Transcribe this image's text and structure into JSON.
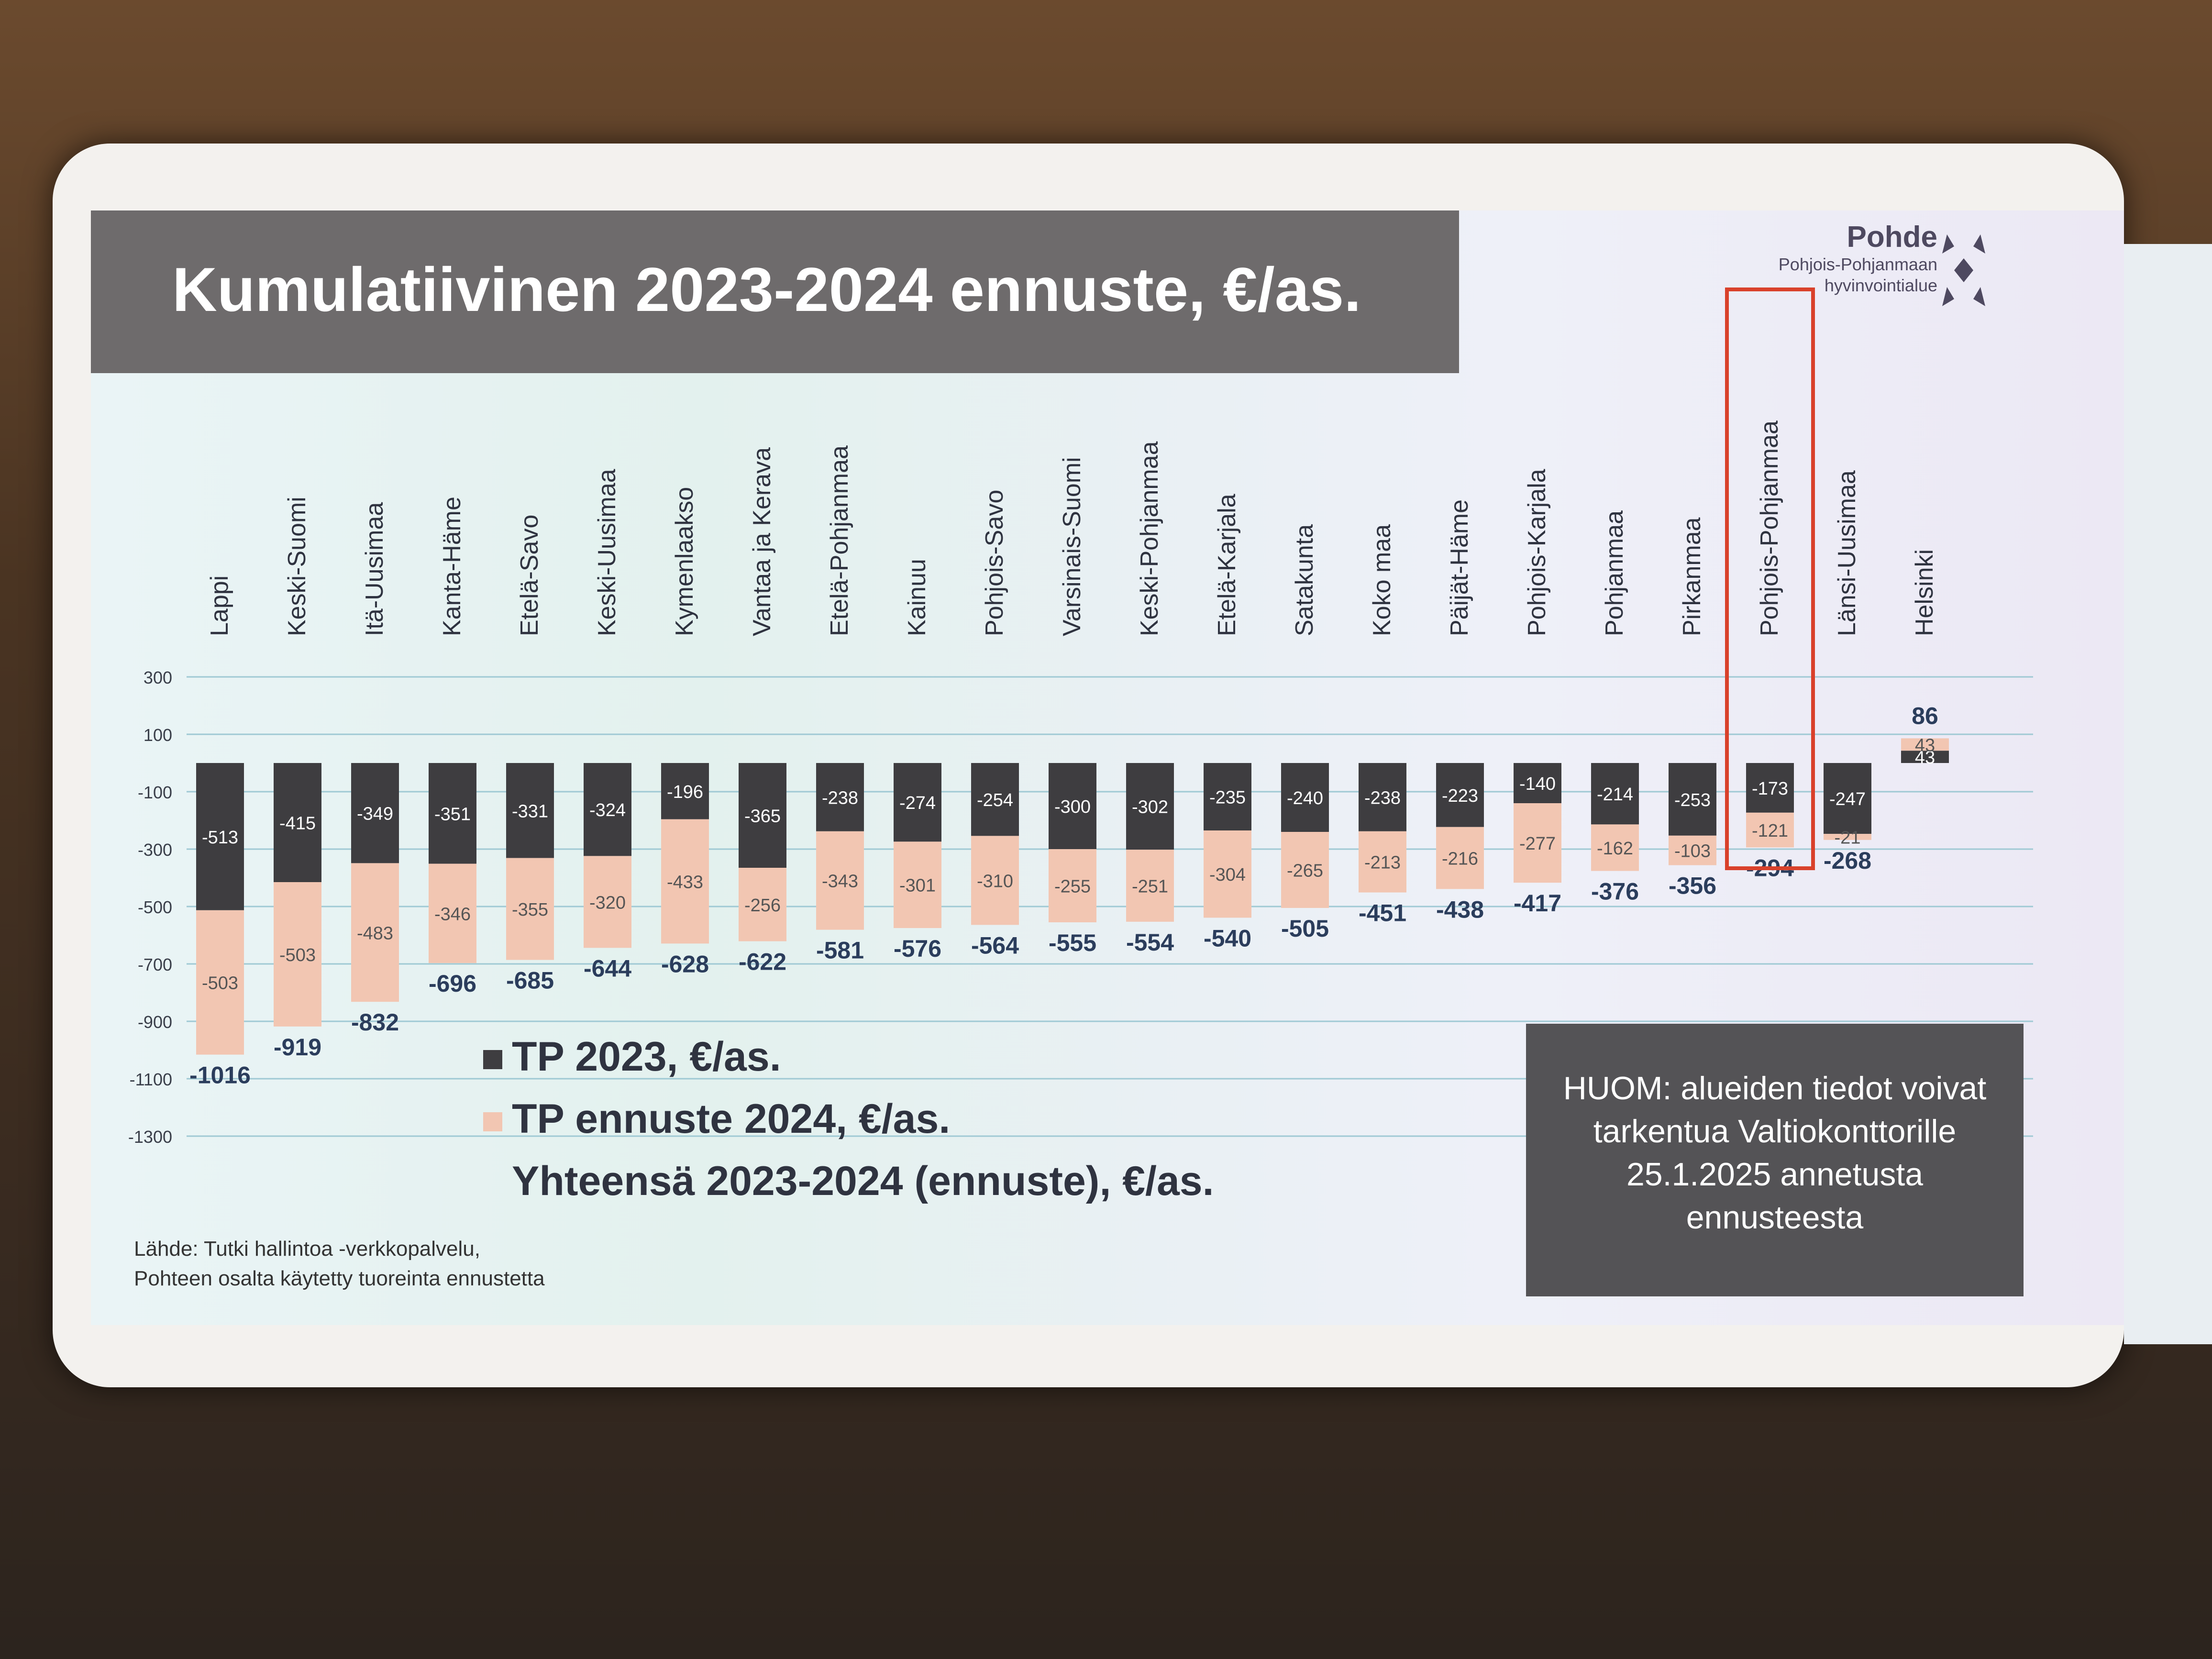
{
  "slide": {
    "title": "Kumulatiivinen 2023-2024 ennuste, €/as.",
    "logo": {
      "name": "Pohde",
      "subtitle_line1": "Pohjois-Pohjanmaan",
      "subtitle_line2": "hyvinvointialue",
      "icon": "pohde-star-logo-icon"
    },
    "note": {
      "line1": "HUOM: alueiden tiedot voivat",
      "line2": "tarkentua Valtiokonttorille",
      "line3": "25.1.2025 annetusta",
      "line4": "ennusteesta"
    },
    "source": {
      "line1": "Lähde: Tutki hallintoa -verkkopalvelu,",
      "line2": "Pohteen osalta käytetty tuoreinta ennustetta"
    },
    "legend": {
      "tp2023": "TP 2023, €/as.",
      "tp2024": "TP ennuste 2024, €/as.",
      "total": "Yhteensä 2023-2024 (ennuste), €/as."
    }
  },
  "colors": {
    "tp2023": "#3e3d40",
    "tp2024": "#f2c6b2",
    "highlight": "#d9412b",
    "total_label": "#2b3d5c",
    "title_band": "#6e6b6c"
  },
  "chart_data": {
    "type": "bar",
    "stacked": true,
    "categories": [
      "Lappi",
      "Keski-Suomi",
      "Itä-Uusimaa",
      "Kanta-Häme",
      "Etelä-Savo",
      "Keski-Uusimaa",
      "Kymenlaakso",
      "Vantaa ja Kerava",
      "Etelä-Pohjanmaa",
      "Kainuu",
      "Pohjois-Savo",
      "Varsinais-Suomi",
      "Keski-Pohjanmaa",
      "Etelä-Karjala",
      "Satakunta",
      "Koko maa",
      "Päijät-Häme",
      "Pohjois-Karjala",
      "Pohjanmaa",
      "Pirkanmaa",
      "Pohjois-Pohjanmaa",
      "Länsi-Uusimaa",
      "Helsinki"
    ],
    "series": [
      {
        "name": "TP 2023, €/as.",
        "values": [
          -513,
          -415,
          -349,
          -351,
          -331,
          -324,
          -196,
          -365,
          -238,
          -274,
          -254,
          -300,
          -302,
          -235,
          -240,
          -238,
          -223,
          -140,
          -214,
          -253,
          -173,
          -247,
          43
        ]
      },
      {
        "name": "TP ennuste 2024, €/as.",
        "values": [
          -503,
          -503,
          -483,
          -346,
          -355,
          -320,
          -433,
          -256,
          -343,
          -301,
          -310,
          -255,
          -251,
          -304,
          -265,
          -213,
          -216,
          -277,
          -162,
          -103,
          -121,
          -21,
          43
        ]
      }
    ],
    "totals": {
      "name": "Yhteensä 2023-2024 (ennuste), €/as.",
      "values": [
        -1016,
        -919,
        -832,
        -696,
        -685,
        -644,
        -628,
        -622,
        -581,
        -576,
        -564,
        -555,
        -554,
        -540,
        -505,
        -451,
        -438,
        -417,
        -376,
        -356,
        -294,
        -268,
        86
      ]
    },
    "y_ticks": [
      "300",
      "100",
      "-100",
      "-300",
      "-500",
      "-700",
      "-900",
      "-1100",
      "-1300"
    ],
    "ylim": [
      -1300,
      300
    ],
    "highlighted_category": "Pohjois-Pohjanmaa",
    "grid": true
  }
}
